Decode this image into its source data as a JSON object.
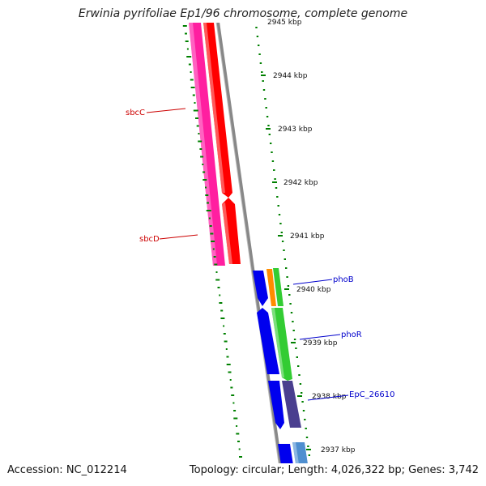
{
  "title": "Erwinia pyrifoliae Ep1/96 chromosome, complete genome",
  "accession": "Accession: NC_012214",
  "summary": "Topology: circular; Length: 4,026,322 bp; Genes: 3,742",
  "colors": {
    "magenta": "#ff1fa0",
    "red": "#ff0000",
    "blue": "#0000ee",
    "orange": "#ff8c00",
    "green": "#33cc33",
    "purple": "#4a3f8f",
    "steelblue": "#4f8fd0",
    "gray_backbone": "#888888",
    "gc_skew_green": "#008000"
  },
  "ticks": [
    "2945 kbp",
    "2944 kbp",
    "2943 kbp",
    "2942 kbp",
    "2941 kbp",
    "2940 kbp",
    "2939 kbp",
    "2938 kbp",
    "2937 kbp"
  ],
  "gene_labels": {
    "sbcC": "sbcC",
    "sbcD": "sbcD",
    "phoB": "phoB",
    "phoR": "phoR",
    "epc": "EpC_26610"
  }
}
